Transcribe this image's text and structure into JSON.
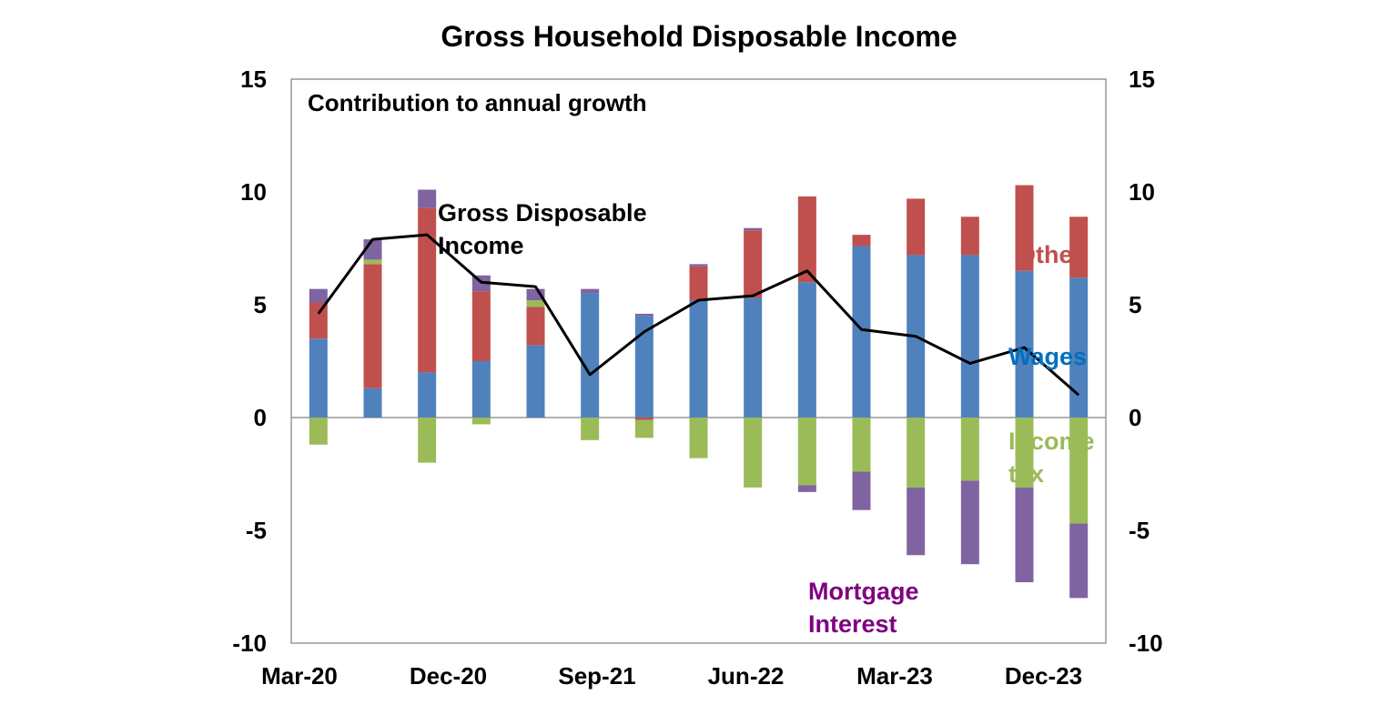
{
  "chart_data": {
    "type": "bar",
    "stacked": true,
    "title": "Gross Household Disposable Income",
    "subtitle": "Contribution to annual growth",
    "x_tick_labels": [
      "Mar-20",
      "Dec-20",
      "Sep-21",
      "Jun-22",
      "Mar-23",
      "Dec-23"
    ],
    "categories": [
      "Mar-20",
      "Jun-20",
      "Sep-20",
      "Dec-20",
      "Mar-21",
      "Jun-21",
      "Sep-21",
      "Dec-21",
      "Mar-22",
      "Jun-22",
      "Sep-22",
      "Dec-22",
      "Mar-23",
      "Jun-23",
      "Sep-23"
    ],
    "y_ticks": [
      15,
      10,
      5,
      0,
      -5,
      -10
    ],
    "ylim": [
      -10,
      15
    ],
    "grid": false,
    "series": [
      {
        "key": "wages",
        "color": "#4F81BD",
        "values": [
          3.5,
          1.3,
          2.0,
          2.5,
          3.2,
          5.5,
          4.5,
          5.2,
          5.3,
          6.0,
          7.6,
          7.2,
          7.2,
          6.5,
          6.2
        ]
      },
      {
        "key": "other",
        "color": "#C0504D",
        "values": [
          1.6,
          5.5,
          7.3,
          3.1,
          1.7,
          0.0,
          -0.1,
          1.5,
          3.0,
          3.8,
          0.5,
          2.5,
          1.7,
          3.8,
          2.7
        ]
      },
      {
        "key": "income_tax",
        "color": "#9BBB59",
        "values": [
          -1.2,
          0.2,
          -2.0,
          -0.3,
          0.3,
          -1.0,
          -0.8,
          -1.8,
          -3.1,
          -3.0,
          -2.4,
          -3.1,
          -2.8,
          -3.1,
          -4.7
        ]
      },
      {
        "key": "mortgage_interest",
        "color": "#8064A2",
        "values": [
          0.6,
          0.9,
          0.8,
          0.7,
          0.5,
          0.2,
          0.1,
          0.1,
          0.1,
          -0.3,
          -1.7,
          -3.0,
          -3.7,
          -4.2,
          -3.3
        ]
      }
    ],
    "line": {
      "key": "gross_disposable_income",
      "color": "#000000",
      "values": [
        4.6,
        7.9,
        8.1,
        6.0,
        5.8,
        1.9,
        3.8,
        5.2,
        5.4,
        6.5,
        3.9,
        3.6,
        2.4,
        3.1,
        1.0
      ]
    },
    "annotations": [
      {
        "key": "line_label_1",
        "text": "Gross Disposable",
        "color": "#000000"
      },
      {
        "key": "line_label_2",
        "text": "Income",
        "color": "#000000"
      },
      {
        "key": "other_label",
        "text": "Other",
        "color": "#C0504D"
      },
      {
        "key": "wages_label",
        "text": "Wages",
        "color": "#0070C0"
      },
      {
        "key": "tax_label_1",
        "text": "Income",
        "color": "#9BBB59"
      },
      {
        "key": "tax_label_2",
        "text": "tax",
        "color": "#9BBB59"
      },
      {
        "key": "mortgage_label_1",
        "text": "Mortgage",
        "color": "#7F0080"
      },
      {
        "key": "mortgage_label_2",
        "text": "Interest",
        "color": "#7F0080"
      }
    ]
  }
}
